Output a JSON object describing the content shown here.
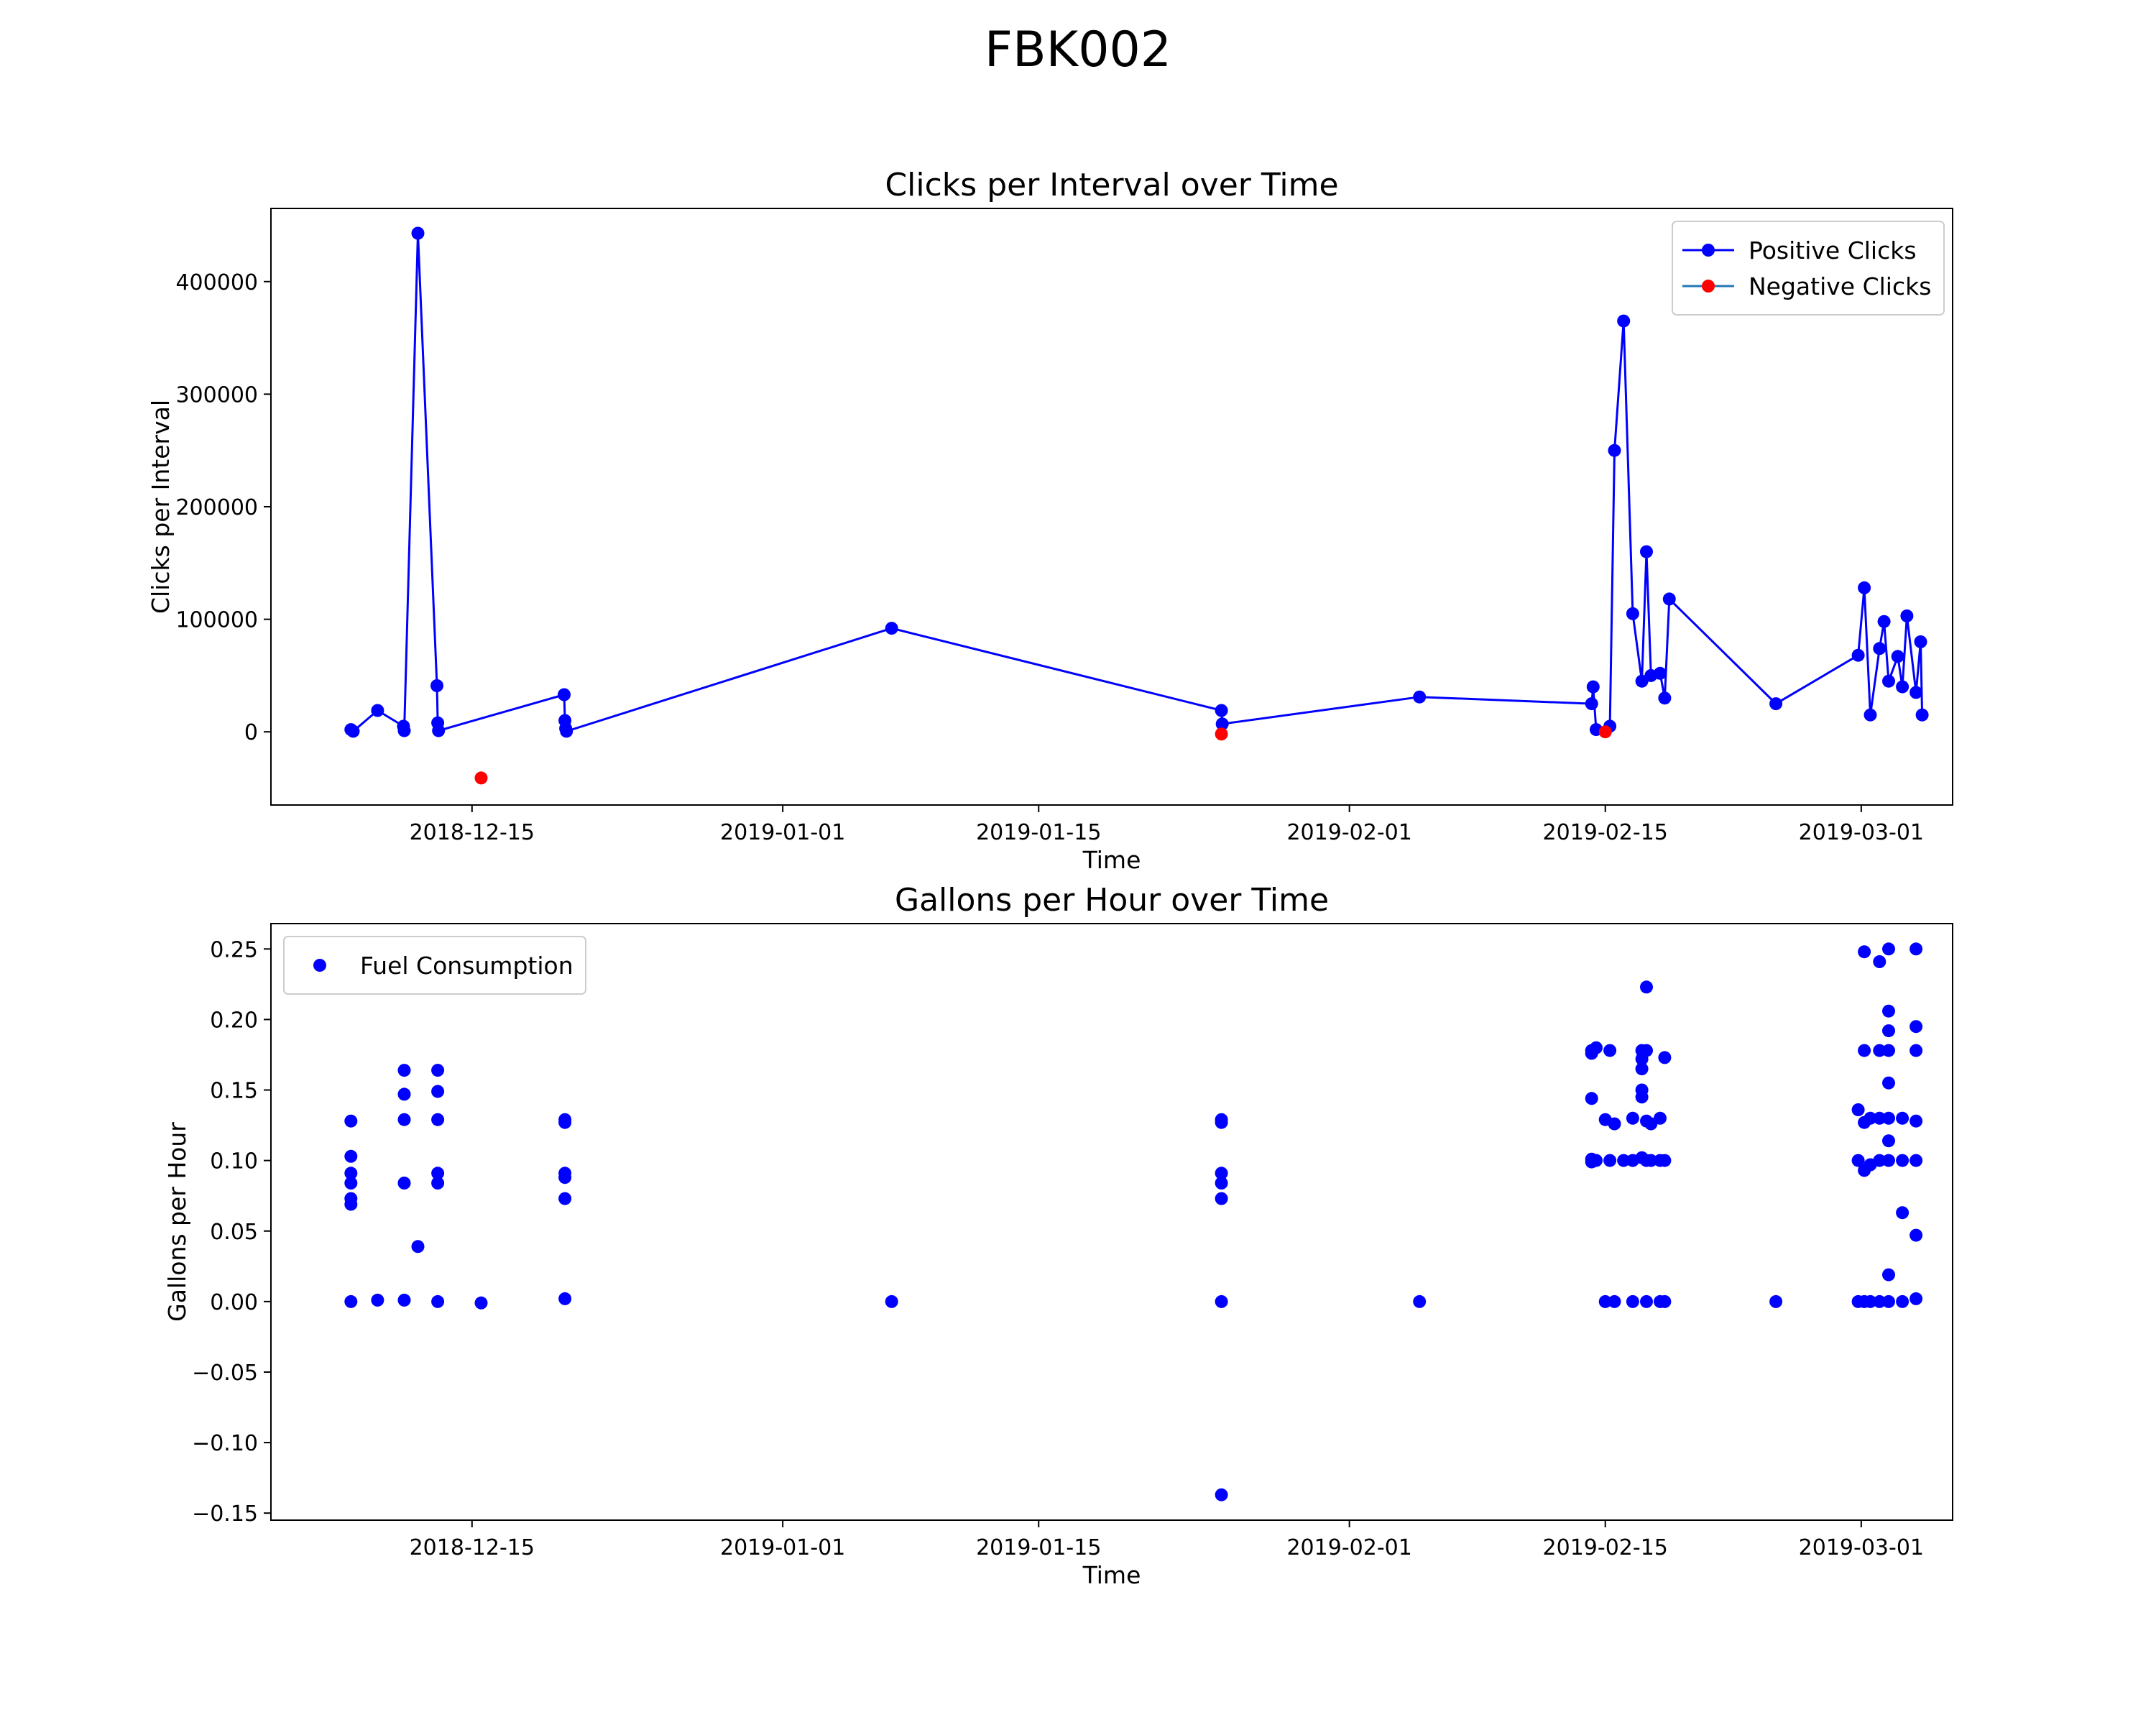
{
  "figure": {
    "title": "FBK002"
  },
  "chart_data": [
    {
      "type": "line",
      "title": "Clicks per Interval over Time",
      "xlabel": "Time",
      "ylabel": "Clicks per Interval",
      "x_range": [
        "2018-12-04",
        "2019-03-06"
      ],
      "ylim": [
        -65000,
        465000
      ],
      "x_ticks": [
        "2018-12-15",
        "2019-01-01",
        "2019-01-15",
        "2019-02-01",
        "2019-02-15",
        "2019-03-01"
      ],
      "y_ticks": [
        0,
        100000,
        200000,
        300000,
        400000
      ],
      "legend": {
        "position": "upper right",
        "entries": [
          "Positive Clicks",
          "Negative Clicks"
        ]
      },
      "series": [
        {
          "name": "Positive Clicks",
          "color": "#0000ff",
          "style": "line-marker",
          "points": [
            [
              "2018-12-08T09:00",
              2000
            ],
            [
              "2018-12-08T12:00",
              500
            ],
            [
              "2018-12-09T20:00",
              19000
            ],
            [
              "2018-12-11T06:00",
              5000
            ],
            [
              "2018-12-11T07:00",
              1000
            ],
            [
              "2018-12-12T01:00",
              443000
            ],
            [
              "2018-12-13T02:00",
              41000
            ],
            [
              "2018-12-13T03:00",
              8000
            ],
            [
              "2018-12-13T04:00",
              1000
            ],
            [
              "2018-12-20T01:00",
              33000
            ],
            [
              "2018-12-20T02:00",
              10000
            ],
            [
              "2018-12-20T03:00",
              3000
            ],
            [
              "2018-12-20T04:00",
              500
            ],
            [
              "2019-01-06T23:00",
              92000
            ],
            [
              "2019-01-25T00:00",
              19000
            ],
            [
              "2019-01-25T01:00",
              7000
            ],
            [
              "2019-02-04T20:00",
              31000
            ],
            [
              "2019-02-14T06:00",
              25000
            ],
            [
              "2019-02-14T08:00",
              40000
            ],
            [
              "2019-02-14T12:00",
              2000
            ],
            [
              "2019-02-15T06:00",
              5000
            ],
            [
              "2019-02-15T12:00",
              250000
            ],
            [
              "2019-02-16T00:00",
              365000
            ],
            [
              "2019-02-16T12:00",
              105000
            ],
            [
              "2019-02-17T00:00",
              45000
            ],
            [
              "2019-02-17T06:00",
              160000
            ],
            [
              "2019-02-17T12:00",
              50000
            ],
            [
              "2019-02-18T00:00",
              52000
            ],
            [
              "2019-02-18T06:00",
              30000
            ],
            [
              "2019-02-18T12:00",
              118000
            ],
            [
              "2019-02-24T08:00",
              25000
            ],
            [
              "2019-02-28T20:00",
              68000
            ],
            [
              "2019-03-01T04:00",
              128000
            ],
            [
              "2019-03-01T12:00",
              15000
            ],
            [
              "2019-03-02T00:00",
              74000
            ],
            [
              "2019-03-02T06:00",
              98000
            ],
            [
              "2019-03-02T12:00",
              45000
            ],
            [
              "2019-03-03T00:00",
              67000
            ],
            [
              "2019-03-03T06:00",
              40000
            ],
            [
              "2019-03-03T12:00",
              103000
            ],
            [
              "2019-03-04T00:00",
              35000
            ],
            [
              "2019-03-04T06:00",
              80000
            ],
            [
              "2019-03-04T08:00",
              15000
            ]
          ]
        },
        {
          "name": "Negative Clicks",
          "color": "#ff0000",
          "style": "marker",
          "points": [
            [
              "2018-12-15T12:00",
              -41000
            ],
            [
              "2019-01-25T00:00",
              -2000
            ],
            [
              "2019-02-15T00:00",
              0
            ]
          ]
        }
      ]
    },
    {
      "type": "scatter",
      "title": "Gallons per Hour over Time",
      "xlabel": "Time",
      "ylabel": "Gallons per Hour",
      "x_range": [
        "2018-12-04",
        "2019-03-06"
      ],
      "ylim": [
        -0.155,
        0.268
      ],
      "x_ticks": [
        "2018-12-15",
        "2019-01-01",
        "2019-01-15",
        "2019-02-01",
        "2019-02-15",
        "2019-03-01"
      ],
      "y_ticks": [
        "0.25",
        "0.20",
        "0.15",
        "0.10",
        "0.05",
        "0.00",
        "−0.05",
        "−0.10",
        "−0.15"
      ],
      "legend": {
        "position": "upper left",
        "entries": [
          "Fuel Consumption"
        ]
      },
      "series": [
        {
          "name": "Fuel Consumption",
          "color": "#0000ff",
          "points": [
            [
              "2018-12-08T09:00",
              0.128
            ],
            [
              "2018-12-08T09:00",
              0.103
            ],
            [
              "2018-12-08T09:00",
              0.091
            ],
            [
              "2018-12-08T09:00",
              0.084
            ],
            [
              "2018-12-08T09:00",
              0.073
            ],
            [
              "2018-12-08T09:00",
              0.069
            ],
            [
              "2018-12-08T09:00",
              0.0
            ],
            [
              "2018-12-09T20:00",
              0.001
            ],
            [
              "2018-12-11T07:00",
              0.164
            ],
            [
              "2018-12-11T07:00",
              0.147
            ],
            [
              "2018-12-11T07:00",
              0.129
            ],
            [
              "2018-12-11T07:00",
              0.084
            ],
            [
              "2018-12-11T07:00",
              0.001
            ],
            [
              "2018-12-12T01:00",
              0.039
            ],
            [
              "2018-12-13T03:00",
              0.164
            ],
            [
              "2018-12-13T03:00",
              0.149
            ],
            [
              "2018-12-13T03:00",
              0.129
            ],
            [
              "2018-12-13T03:00",
              0.091
            ],
            [
              "2018-12-13T03:00",
              0.084
            ],
            [
              "2018-12-13T03:00",
              0.0
            ],
            [
              "2018-12-15T12:00",
              -0.001
            ],
            [
              "2018-12-20T02:00",
              0.129
            ],
            [
              "2018-12-20T02:00",
              0.127
            ],
            [
              "2018-12-20T02:00",
              0.091
            ],
            [
              "2018-12-20T02:00",
              0.088
            ],
            [
              "2018-12-20T02:00",
              0.073
            ],
            [
              "2018-12-20T02:00",
              0.002
            ],
            [
              "2019-01-06T23:00",
              0.0
            ],
            [
              "2019-01-25T00:00",
              0.129
            ],
            [
              "2019-01-25T00:00",
              0.127
            ],
            [
              "2019-01-25T00:00",
              0.091
            ],
            [
              "2019-01-25T00:00",
              0.084
            ],
            [
              "2019-01-25T00:00",
              0.073
            ],
            [
              "2019-01-25T00:00",
              0.0
            ],
            [
              "2019-01-25T00:00",
              -0.137
            ],
            [
              "2019-02-04T20:00",
              0.0
            ],
            [
              "2019-02-14T06:00",
              0.178
            ],
            [
              "2019-02-14T06:00",
              0.176
            ],
            [
              "2019-02-14T06:00",
              0.144
            ],
            [
              "2019-02-14T06:00",
              0.101
            ],
            [
              "2019-02-14T06:00",
              0.099
            ],
            [
              "2019-02-14T12:00",
              0.18
            ],
            [
              "2019-02-14T12:00",
              0.1
            ],
            [
              "2019-02-15T00:00",
              0.129
            ],
            [
              "2019-02-15T00:00",
              0.0
            ],
            [
              "2019-02-15T06:00",
              0.178
            ],
            [
              "2019-02-15T06:00",
              0.1
            ],
            [
              "2019-02-15T12:00",
              0.126
            ],
            [
              "2019-02-15T12:00",
              0.0
            ],
            [
              "2019-02-16T00:00",
              0.1
            ],
            [
              "2019-02-16T12:00",
              0.13
            ],
            [
              "2019-02-16T12:00",
              0.1
            ],
            [
              "2019-02-16T12:00",
              0.0
            ],
            [
              "2019-02-17T00:00",
              0.178
            ],
            [
              "2019-02-17T00:00",
              0.172
            ],
            [
              "2019-02-17T00:00",
              0.165
            ],
            [
              "2019-02-17T00:00",
              0.15
            ],
            [
              "2019-02-17T00:00",
              0.145
            ],
            [
              "2019-02-17T00:00",
              0.102
            ],
            [
              "2019-02-17T06:00",
              0.223
            ],
            [
              "2019-02-17T06:00",
              0.178
            ],
            [
              "2019-02-17T06:00",
              0.128
            ],
            [
              "2019-02-17T06:00",
              0.1
            ],
            [
              "2019-02-17T06:00",
              0.0
            ],
            [
              "2019-02-17T12:00",
              0.126
            ],
            [
              "2019-02-17T12:00",
              0.1
            ],
            [
              "2019-02-18T00:00",
              0.13
            ],
            [
              "2019-02-18T00:00",
              0.1
            ],
            [
              "2019-02-18T00:00",
              0.0
            ],
            [
              "2019-02-18T06:00",
              0.173
            ],
            [
              "2019-02-18T06:00",
              0.1
            ],
            [
              "2019-02-18T06:00",
              0.0
            ],
            [
              "2019-02-24T08:00",
              0.0
            ],
            [
              "2019-02-28T20:00",
              0.136
            ],
            [
              "2019-02-28T20:00",
              0.1
            ],
            [
              "2019-02-28T20:00",
              0.0
            ],
            [
              "2019-03-01T04:00",
              0.248
            ],
            [
              "2019-03-01T04:00",
              0.178
            ],
            [
              "2019-03-01T04:00",
              0.127
            ],
            [
              "2019-03-01T04:00",
              0.093
            ],
            [
              "2019-03-01T04:00",
              0.0
            ],
            [
              "2019-03-01T12:00",
              0.13
            ],
            [
              "2019-03-01T12:00",
              0.097
            ],
            [
              "2019-03-01T12:00",
              0.0
            ],
            [
              "2019-03-02T00:00",
              0.241
            ],
            [
              "2019-03-02T00:00",
              0.178
            ],
            [
              "2019-03-02T00:00",
              0.13
            ],
            [
              "2019-03-02T00:00",
              0.1
            ],
            [
              "2019-03-02T00:00",
              0.0
            ],
            [
              "2019-03-02T12:00",
              0.25
            ],
            [
              "2019-03-02T12:00",
              0.206
            ],
            [
              "2019-03-02T12:00",
              0.192
            ],
            [
              "2019-03-02T12:00",
              0.178
            ],
            [
              "2019-03-02T12:00",
              0.155
            ],
            [
              "2019-03-02T12:00",
              0.13
            ],
            [
              "2019-03-02T12:00",
              0.114
            ],
            [
              "2019-03-02T12:00",
              0.1
            ],
            [
              "2019-03-02T12:00",
              0.019
            ],
            [
              "2019-03-02T12:00",
              0.0
            ],
            [
              "2019-03-03T06:00",
              0.13
            ],
            [
              "2019-03-03T06:00",
              0.1
            ],
            [
              "2019-03-03T06:00",
              0.063
            ],
            [
              "2019-03-03T06:00",
              0.0
            ],
            [
              "2019-03-04T00:00",
              0.25
            ],
            [
              "2019-03-04T00:00",
              0.195
            ],
            [
              "2019-03-04T00:00",
              0.178
            ],
            [
              "2019-03-04T00:00",
              0.128
            ],
            [
              "2019-03-04T00:00",
              0.1
            ],
            [
              "2019-03-04T00:00",
              0.047
            ],
            [
              "2019-03-04T00:00",
              0.002
            ]
          ]
        }
      ]
    }
  ]
}
